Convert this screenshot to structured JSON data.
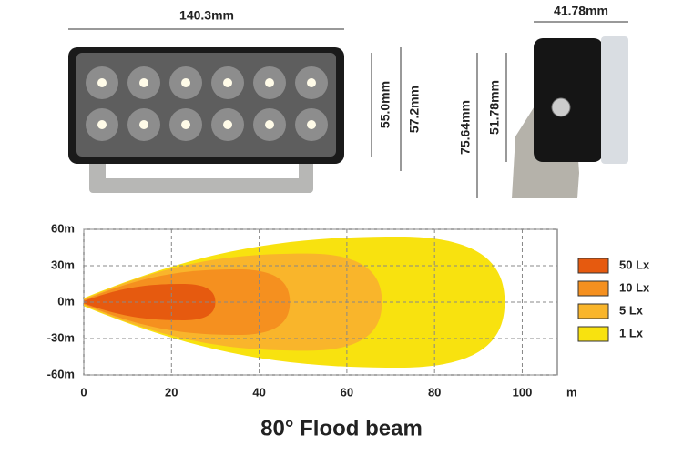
{
  "dimensions": {
    "front_width": "140.3mm",
    "front_lens_height": "55.0mm",
    "front_height": "57.2mm",
    "side_depth": "41.78mm",
    "side_total_height": "75.64mm",
    "side_height": "51.78mm"
  },
  "chart_data": {
    "type": "beam",
    "title": "80°  Flood beam",
    "x_label": "m",
    "xlim": [
      0,
      108
    ],
    "xticks": [
      0,
      20,
      40,
      60,
      80,
      100
    ],
    "ylim": [
      -60,
      60
    ],
    "yticks": [
      {
        "value": 60,
        "label": "60m"
      },
      {
        "value": 30,
        "label": "30m"
      },
      {
        "value": 0,
        "label": "0m"
      },
      {
        "value": -30,
        "label": "-30m"
      },
      {
        "value": -60,
        "label": "-60m"
      }
    ],
    "grid": true,
    "series": [
      {
        "name": "50 Lx",
        "color": "#e65a0f",
        "reach": 30,
        "half_width": 15
      },
      {
        "name": "10 Lx",
        "color": "#f5901f",
        "reach": 47,
        "half_width": 27
      },
      {
        "name": "5 Lx",
        "color": "#f9b52b",
        "reach": 68,
        "half_width": 40
      },
      {
        "name": "1 Lx",
        "color": "#f8e20f",
        "reach": 96,
        "half_width": 54
      }
    ]
  }
}
